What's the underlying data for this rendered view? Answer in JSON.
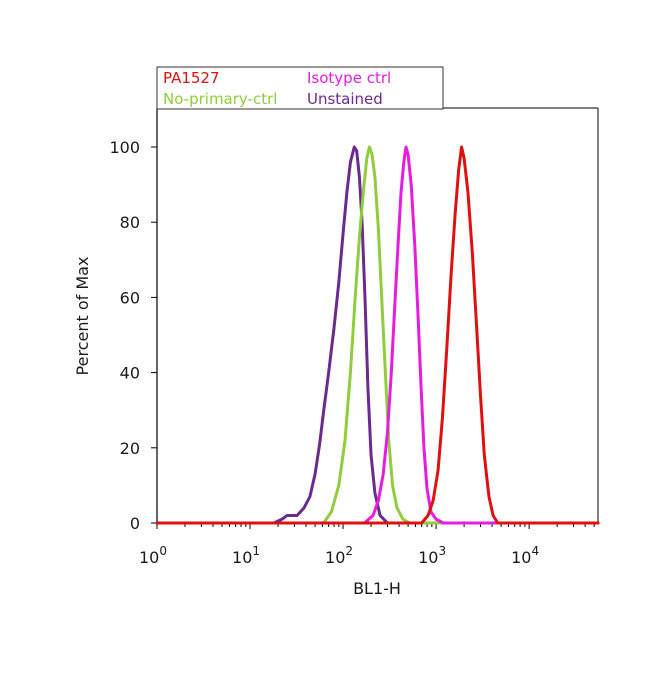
{
  "chart_data": {
    "type": "line",
    "title": "",
    "xlabel": "BL1-H",
    "ylabel": "Percent of Max",
    "x_scale": "log",
    "xlim": [
      1,
      55000
    ],
    "ylim": [
      0,
      108
    ],
    "grid": false,
    "legend_placement": "top-left",
    "x_ticks": [
      {
        "value": 1,
        "base": "10",
        "exp": "0"
      },
      {
        "value": 10,
        "base": "10",
        "exp": "1"
      },
      {
        "value": 100,
        "base": "10",
        "exp": "2"
      },
      {
        "value": 1000,
        "base": "10",
        "exp": "3"
      },
      {
        "value": 10000,
        "base": "10",
        "exp": "4"
      }
    ],
    "y_ticks": [
      0,
      20,
      40,
      60,
      80,
      100
    ],
    "series": [
      {
        "name": "Unstained",
        "color": "#6a2a8e",
        "points": [
          [
            1,
            0
          ],
          [
            18,
            0
          ],
          [
            22,
            1
          ],
          [
            25,
            2
          ],
          [
            32,
            2
          ],
          [
            38,
            4
          ],
          [
            44,
            7
          ],
          [
            50,
            13
          ],
          [
            56,
            21
          ],
          [
            62,
            30
          ],
          [
            70,
            40
          ],
          [
            80,
            52
          ],
          [
            90,
            64
          ],
          [
            100,
            77
          ],
          [
            110,
            88
          ],
          [
            120,
            96
          ],
          [
            132,
            100
          ],
          [
            140,
            99
          ],
          [
            150,
            92
          ],
          [
            160,
            80
          ],
          [
            172,
            60
          ],
          [
            185,
            36
          ],
          [
            200,
            18
          ],
          [
            220,
            8
          ],
          [
            250,
            2
          ],
          [
            300,
            0
          ],
          [
            55000,
            0
          ]
        ]
      },
      {
        "name": "No-primary-ctrl",
        "color": "#8fce3a",
        "points": [
          [
            1,
            0
          ],
          [
            62,
            0
          ],
          [
            75,
            3
          ],
          [
            90,
            10
          ],
          [
            105,
            22
          ],
          [
            120,
            40
          ],
          [
            135,
            60
          ],
          [
            150,
            76
          ],
          [
            165,
            88
          ],
          [
            180,
            97
          ],
          [
            192,
            100
          ],
          [
            205,
            98
          ],
          [
            220,
            92
          ],
          [
            240,
            78
          ],
          [
            260,
            60
          ],
          [
            285,
            40
          ],
          [
            310,
            22
          ],
          [
            340,
            10
          ],
          [
            380,
            4
          ],
          [
            440,
            1
          ],
          [
            520,
            0
          ],
          [
            55000,
            0
          ]
        ]
      },
      {
        "name": "Isotype ctrl",
        "color": "#e81ce0",
        "points": [
          [
            1,
            0
          ],
          [
            170,
            0
          ],
          [
            210,
            2
          ],
          [
            240,
            6
          ],
          [
            270,
            13
          ],
          [
            300,
            24
          ],
          [
            330,
            40
          ],
          [
            360,
            58
          ],
          [
            390,
            74
          ],
          [
            420,
            88
          ],
          [
            450,
            96
          ],
          [
            475,
            100
          ],
          [
            500,
            98
          ],
          [
            540,
            90
          ],
          [
            590,
            74
          ],
          [
            640,
            55
          ],
          [
            690,
            36
          ],
          [
            740,
            20
          ],
          [
            800,
            9
          ],
          [
            880,
            3
          ],
          [
            1000,
            1
          ],
          [
            1200,
            0
          ],
          [
            55000,
            0
          ]
        ]
      },
      {
        "name": "PA1527",
        "color": "#e01010",
        "points": [
          [
            1,
            0
          ],
          [
            700,
            0
          ],
          [
            820,
            2
          ],
          [
            930,
            6
          ],
          [
            1050,
            14
          ],
          [
            1170,
            28
          ],
          [
            1300,
            46
          ],
          [
            1450,
            66
          ],
          [
            1600,
            82
          ],
          [
            1750,
            94
          ],
          [
            1880,
            100
          ],
          [
            2000,
            97
          ],
          [
            2200,
            88
          ],
          [
            2450,
            72
          ],
          [
            2700,
            54
          ],
          [
            3000,
            34
          ],
          [
            3300,
            18
          ],
          [
            3700,
            7
          ],
          [
            4100,
            2
          ],
          [
            4600,
            0
          ],
          [
            55000,
            0
          ]
        ]
      }
    ],
    "legend": [
      {
        "label": "PA1527",
        "color": "#e01010"
      },
      {
        "label": "Isotype ctrl",
        "color": "#e81ce0"
      },
      {
        "label": "No-primary-ctrl",
        "color": "#8fce3a"
      },
      {
        "label": "Unstained",
        "color": "#6a2a8e"
      }
    ],
    "colors": {
      "axis": "#000000",
      "frame_muted": "#9a9a9a"
    }
  }
}
